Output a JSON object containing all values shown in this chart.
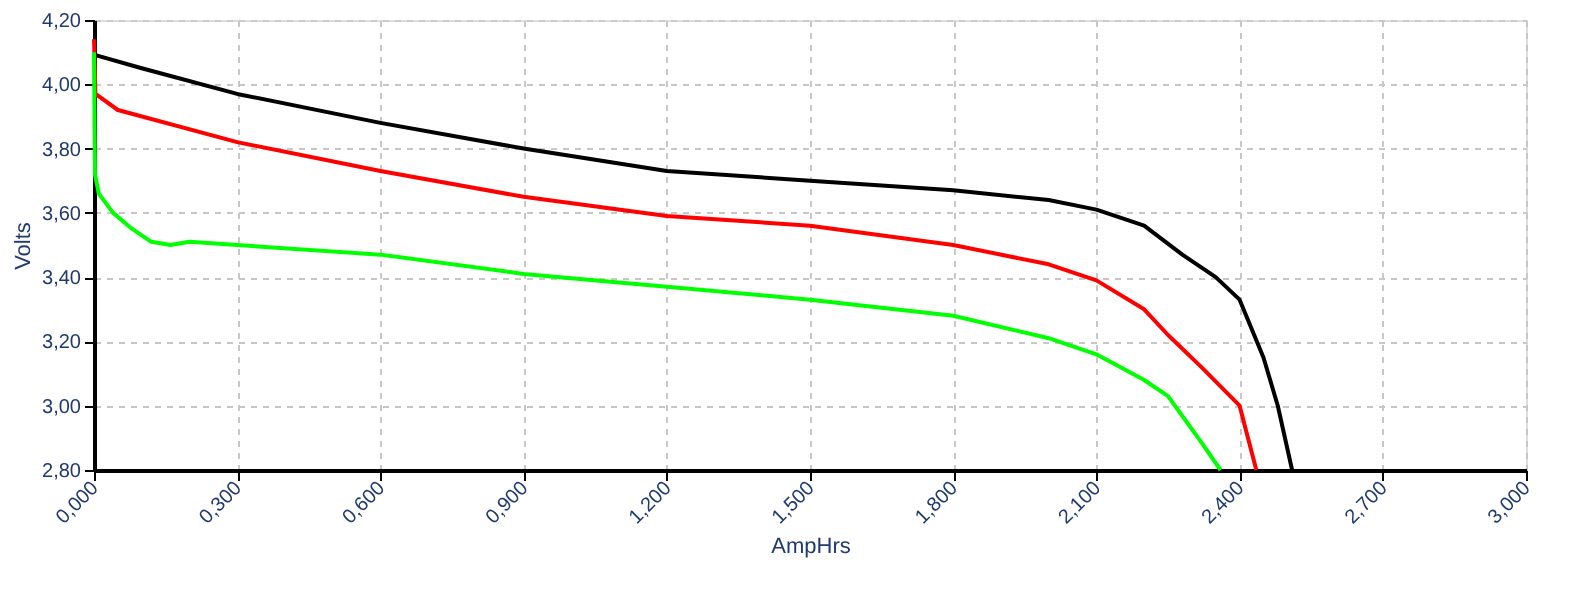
{
  "chart_data": {
    "type": "line",
    "xlabel": "AmpHrs",
    "ylabel": "Volts",
    "xlim": [
      0,
      3.0
    ],
    "ylim": [
      2.8,
      4.2
    ],
    "xticks": [
      {
        "value": 0,
        "label": "0,000"
      },
      {
        "value": 0.3,
        "label": "0,300"
      },
      {
        "value": 0.6,
        "label": "0,600"
      },
      {
        "value": 0.9,
        "label": "0,900"
      },
      {
        "value": 1.2,
        "label": "1,200"
      },
      {
        "value": 1.5,
        "label": "1,500"
      },
      {
        "value": 1.8,
        "label": "1,800"
      },
      {
        "value": 2.1,
        "label": "2,100"
      },
      {
        "value": 2.4,
        "label": "2,400"
      },
      {
        "value": 2.7,
        "label": "2,700"
      },
      {
        "value": 3.0,
        "label": "3,000"
      }
    ],
    "yticks": [
      {
        "value": 2.8,
        "label": "2,80"
      },
      {
        "value": 3.0,
        "label": "3,00"
      },
      {
        "value": 3.2,
        "label": "3,20"
      },
      {
        "value": 3.4,
        "label": "3,40"
      },
      {
        "value": 3.6,
        "label": "3,60"
      },
      {
        "value": 3.8,
        "label": "3,80"
      },
      {
        "value": 4.0,
        "label": "4,00"
      },
      {
        "value": 4.2,
        "label": "4,20"
      }
    ],
    "grid": true,
    "legend": false,
    "marker": "none",
    "line_style": "solid",
    "series": [
      {
        "color": "#000000",
        "x": [
          0,
          0.005,
          0.1,
          0.3,
          0.6,
          0.9,
          1.2,
          1.5,
          1.8,
          2.0,
          2.1,
          2.2,
          2.28,
          2.35,
          2.4,
          2.45,
          2.48,
          2.51
        ],
        "values": [
          4.1,
          4.09,
          4.05,
          3.97,
          3.88,
          3.8,
          3.73,
          3.7,
          3.67,
          3.64,
          3.61,
          3.56,
          3.47,
          3.4,
          3.33,
          3.15,
          3.0,
          2.8
        ]
      },
      {
        "color": "#ff0000",
        "x": [
          0,
          0.003,
          0.05,
          0.3,
          0.6,
          0.9,
          1.2,
          1.5,
          1.8,
          2.0,
          2.1,
          2.2,
          2.25,
          2.32,
          2.4,
          2.435
        ],
        "values": [
          4.14,
          3.97,
          3.92,
          3.82,
          3.73,
          3.65,
          3.59,
          3.56,
          3.5,
          3.44,
          3.39,
          3.3,
          3.22,
          3.12,
          3.0,
          2.8
        ]
      },
      {
        "color": "#00ff00",
        "x": [
          0,
          0.002,
          0.01,
          0.04,
          0.08,
          0.12,
          0.16,
          0.2,
          0.3,
          0.6,
          0.9,
          1.2,
          1.5,
          1.8,
          2.0,
          2.1,
          2.2,
          2.25,
          2.318,
          2.36
        ],
        "values": [
          4.1,
          3.72,
          3.66,
          3.6,
          3.55,
          3.51,
          3.5,
          3.51,
          3.5,
          3.47,
          3.41,
          3.37,
          3.33,
          3.28,
          3.21,
          3.16,
          3.08,
          3.03,
          2.89,
          2.8
        ]
      }
    ]
  }
}
